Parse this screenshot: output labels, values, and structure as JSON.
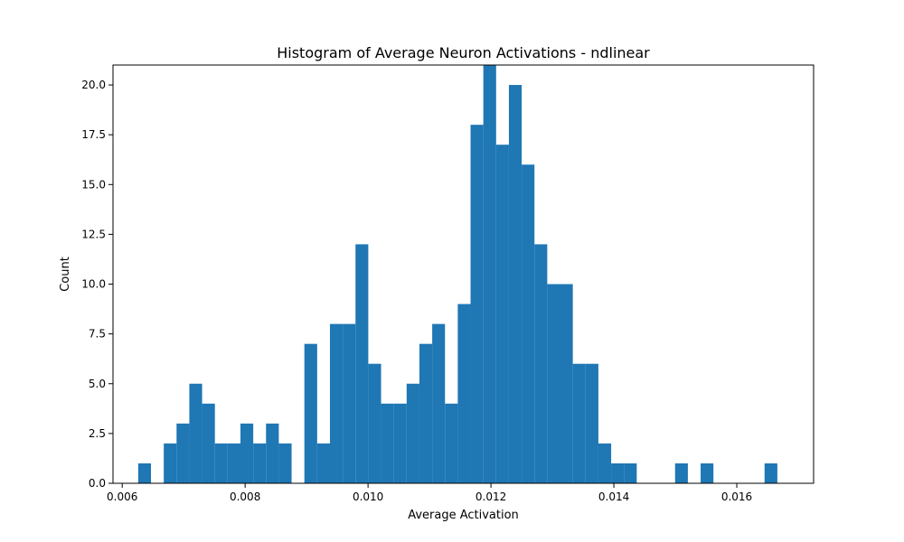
{
  "chart_data": {
    "type": "bar",
    "title": "Histogram of Average Neuron Activations - ndlinear",
    "xlabel": "Average Activation",
    "ylabel": "Count",
    "xlim": [
      0.00585,
      0.01725
    ],
    "ylim": [
      0.0,
      21.0
    ],
    "xticks": [
      0.006,
      0.008,
      0.01,
      0.012,
      0.014,
      0.016
    ],
    "xtick_labels": [
      "0.006",
      "0.008",
      "0.010",
      "0.012",
      "0.014",
      "0.016"
    ],
    "yticks": [
      0.0,
      2.5,
      5.0,
      7.5,
      10.0,
      12.5,
      15.0,
      17.5,
      20.0
    ],
    "ytick_labels": [
      "0.0",
      "2.5",
      "5.0",
      "7.5",
      "10.0",
      "12.5",
      "15.0",
      "17.5",
      "20.0"
    ],
    "grid": false,
    "bar_color": "#1f77b4",
    "bin_start": 0.00626,
    "bin_width": 0.000208,
    "values": [
      1,
      0,
      2,
      3,
      5,
      4,
      2,
      2,
      3,
      2,
      3,
      2,
      0,
      7,
      2,
      8,
      8,
      12,
      6,
      4,
      4,
      5,
      7,
      8,
      4,
      9,
      18,
      21,
      17,
      20,
      16,
      12,
      10,
      10,
      6,
      6,
      2,
      1,
      1,
      0,
      0,
      0,
      1,
      0,
      1,
      0,
      0,
      0,
      0,
      1
    ]
  }
}
